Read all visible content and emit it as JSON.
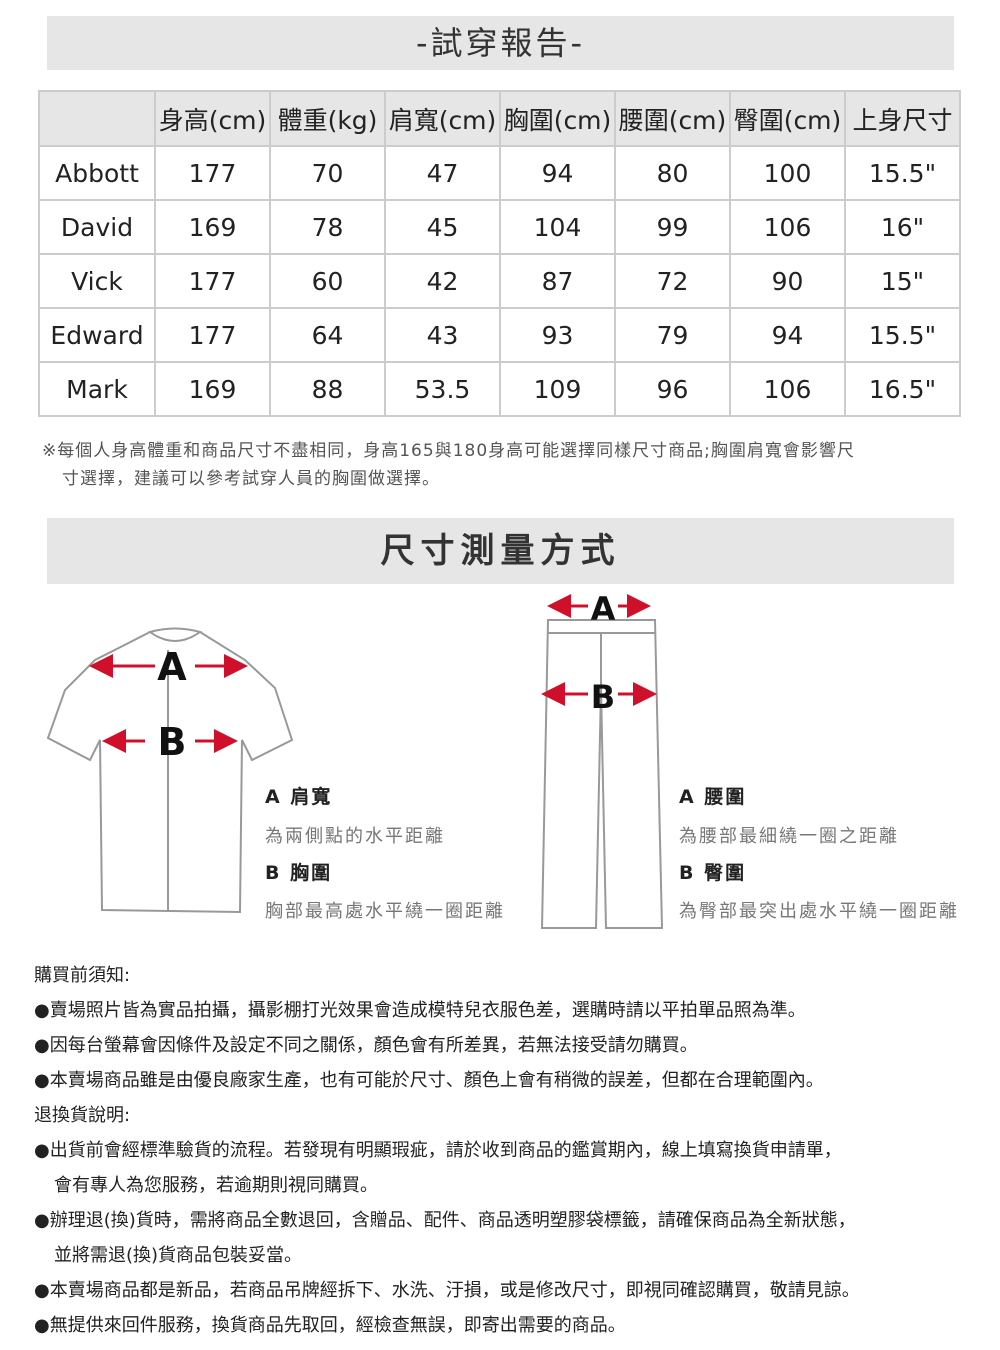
{
  "title": "-試穿報告-",
  "table": {
    "headers": [
      "",
      "身高(cm)",
      "體重(kg)",
      "肩寬(cm)",
      "胸圍(cm)",
      "腰圍(cm)",
      "臀圍(cm)",
      "上身尺寸"
    ],
    "rows": [
      [
        "Abbott",
        "177",
        "70",
        "47",
        "94",
        "80",
        "100",
        "15.5\""
      ],
      [
        "David",
        "169",
        "78",
        "45",
        "104",
        "99",
        "106",
        "16\""
      ],
      [
        "Vick",
        "177",
        "60",
        "42",
        "87",
        "72",
        "90",
        "15\""
      ],
      [
        "Edward",
        "177",
        "64",
        "43",
        "93",
        "79",
        "94",
        "15.5\""
      ],
      [
        "Mark",
        "169",
        "88",
        "53.5",
        "109",
        "96",
        "106",
        "16.5\""
      ]
    ]
  },
  "note": [
    "※每個人身高體重和商品尺寸不盡相同，身高165與180身高可能選擇同樣尺寸商品;胸圍肩寬會影響尺",
    "寸選擇，建議可以參考試穿人員的胸圍做選擇。"
  ],
  "measure_title": "尺寸測量方式",
  "shirt": {
    "a_label": "A",
    "b_label": "B",
    "a_title": "A 肩寬",
    "a_desc": "為兩側點的水平距離",
    "b_title": "B 胸圍",
    "b_desc": "胸部最高處水平繞一圈距離"
  },
  "pants": {
    "a_label": "A",
    "b_label": "B",
    "a_title": "A 腰圍",
    "a_desc": "為腰部最細繞一圈之距離",
    "b_title": "B 臀圍",
    "b_desc": "為臀部最突出處水平繞一圈距離"
  },
  "notes": [
    "購買前須知:",
    "●賣場照片皆為實品拍攝，攝影棚打光效果會造成模特兒衣服色差，選購時請以平拍單品照為準。",
    "●因每台螢幕會因條件及設定不同之關係，顏色會有所差異，若無法接受請勿購買。",
    "●本賣場商品雖是由優良廠家生產，也有可能於尺寸、顏色上會有稍微的誤差，但都在合理範圍內。",
    "退換貨說明:",
    "●出貨前會經標準驗貨的流程。若發現有明顯瑕疵，請於收到商品的鑑賞期內，線上填寫換貨申請單，",
    "會有專人為您服務，若逾期則視同購買。",
    "●辦理退(換)貨時，需將商品全數退回，含贈品、配件、商品透明塑膠袋標籤，請確保商品為全新狀態，",
    "並將需退(換)貨商品包裝妥當。",
    "●本賣場商品都是新品，若商品吊牌經拆下、水洗、汙損，或是修改尺寸，即視同確認購買，敬請見諒。",
    "●無提供來回件服務，換貨商品先取回，經檢查無誤，即寄出需要的商品。"
  ],
  "colors": {
    "arrow": "#d0102a",
    "header_bg": "#e6e6e6"
  }
}
